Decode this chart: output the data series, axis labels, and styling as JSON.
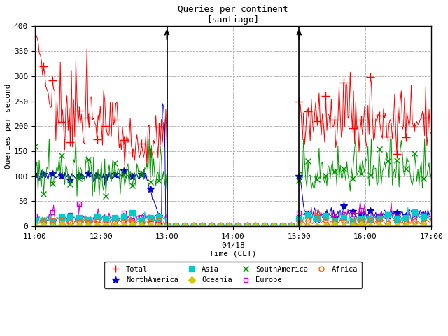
{
  "title": "Queries per continent\n[santiago]",
  "xlabel": "04/18\nTime (CLT)",
  "ylabel": "Queries per second",
  "ylim": [
    0,
    400
  ],
  "yticks": [
    0,
    50,
    100,
    150,
    200,
    250,
    300,
    350,
    400
  ],
  "xticks_pos": [
    0,
    60,
    120,
    180,
    240,
    300,
    360
  ],
  "xticks_labels": [
    "11:00",
    "12:00",
    "13:00",
    "14:00",
    "15:00",
    "16:00",
    "17:00"
  ],
  "colors": {
    "Total": "#ff0000",
    "NorthAmerica": "#0000cc",
    "SouthAmerica": "#009900",
    "Europe": "#cc00cc",
    "Asia": "#00cccc",
    "Africa": "#ff6600",
    "Oceania": "#cccc00"
  },
  "background_color": "#ffffff",
  "grid_color": "#aaaaaa"
}
